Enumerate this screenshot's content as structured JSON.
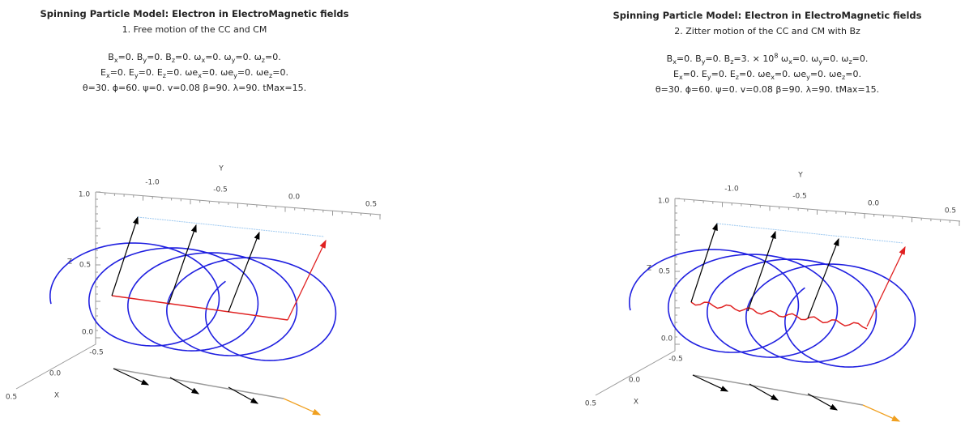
{
  "panels": [
    {
      "title": "Spinning Particle Model: Electron in ElectroMagnetic fields",
      "subtitle": "1. Free motion of the CC and CM",
      "parameters": [
        [
          "B",
          {
            "sub": "x"
          },
          "=0. B",
          {
            "sub": "y"
          },
          "=0. B",
          {
            "sub": "z"
          },
          "=0. ω",
          {
            "sub": "x"
          },
          "=0. ω",
          {
            "sub": "y"
          },
          "=0. ω",
          {
            "sub": "z"
          },
          "=0."
        ],
        [
          "E",
          {
            "sub": "x"
          },
          "=0. E",
          {
            "sub": "y"
          },
          "=0. E",
          {
            "sub": "z"
          },
          "=0. ωe",
          {
            "sub": "x"
          },
          "=0. ωe",
          {
            "sub": "y"
          },
          "=0. ωe",
          {
            "sub": "z"
          },
          "=0."
        ],
        [
          "θ=30. ϕ=60. ψ=0. v=0.08 β=90. λ=90. tMax=15."
        ]
      ],
      "axes": {
        "y_label": "Y",
        "y_ticks": [
          "-1.0",
          "-0.5",
          "0.0",
          "0.5"
        ],
        "z_label": "Z",
        "z_ticks": [
          "1.0",
          "0.5",
          "0.0"
        ],
        "x_label": "X",
        "x_ticks": [
          "-0.5",
          "0.0",
          "0.5"
        ]
      }
    },
    {
      "title": "Spinning Particle Model: Electron in ElectroMagnetic fields",
      "subtitle": "2. Zitter motion of the CC and CM with Bz",
      "parameters": [
        [
          "B",
          {
            "sub": "x"
          },
          "=0. B",
          {
            "sub": "y"
          },
          "=0. B",
          {
            "sub": "z"
          },
          "=3. × 10",
          {
            "sup": "8"
          },
          " ω",
          {
            "sub": "x"
          },
          "=0. ω",
          {
            "sub": "y"
          },
          "=0. ω",
          {
            "sub": "z"
          },
          "=0."
        ],
        [
          "E",
          {
            "sub": "x"
          },
          "=0. E",
          {
            "sub": "y"
          },
          "=0. E",
          {
            "sub": "z"
          },
          "=0. ωe",
          {
            "sub": "x"
          },
          "=0. ωe",
          {
            "sub": "y"
          },
          "=0. ωe",
          {
            "sub": "z"
          },
          "=0."
        ],
        [
          "θ=30. ϕ=60. ψ=0. v=0.08 β=90. λ=90. tMax=15."
        ]
      ],
      "axes": {
        "y_label": "Y",
        "y_ticks": [
          "-1.0",
          "-0.5",
          "0.0",
          "0.5"
        ],
        "z_label": "Z",
        "z_ticks": [
          "1.0",
          "0.5",
          "0.0"
        ],
        "x_label": "X",
        "x_ticks": [
          "-0.5",
          "0.0",
          "0.5"
        ]
      }
    }
  ]
}
